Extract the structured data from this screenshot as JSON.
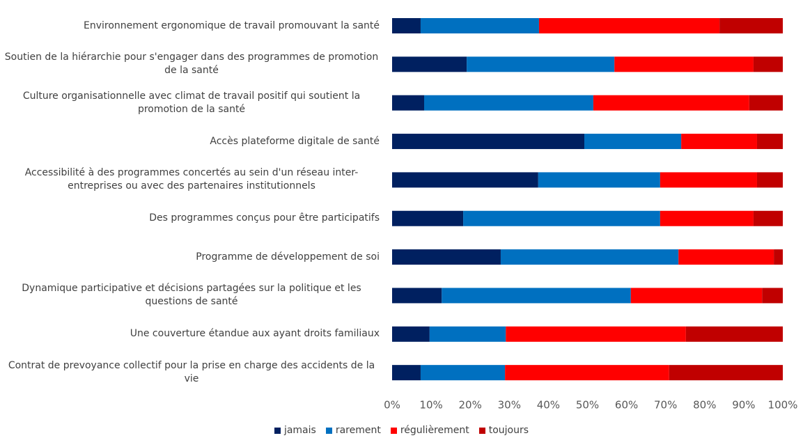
{
  "chart_data": {
    "type": "stacked_barh",
    "categories": [
      "Environnement ergonomique de travail promouvant la santé",
      "Soutien de la hiérarchie pour s'engager dans des programmes de promotion de la santé",
      "Culture organisationnelle avec climat de travail positif qui soutient la promotion de la santé",
      "Accès plateforme digitale de santé",
      "Accessibilité à des programmes concertés au sein d'un réseau inter-entreprises ou avec des partenaires institutionnels",
      "Des programmes conçus pour être participatifs",
      "Programme de développement de soi",
      "Dynamique participative et décisions partagées sur la politique et les questions de santé",
      "Une couverture étandue aux ayant droits familiaux",
      "Contrat de prevoyance collectif pour la prise en charge des accidents de la vie"
    ],
    "series": [
      {
        "name": "jamais",
        "color": "#002060",
        "values": [
          7.3,
          19.1,
          8.2,
          49.2,
          37.4,
          18.2,
          27.8,
          12.7,
          9.6,
          7.3
        ]
      },
      {
        "name": "rarement",
        "color": "#0070c0",
        "values": [
          30.3,
          37.8,
          43.3,
          24.8,
          31.2,
          50.4,
          45.5,
          48.4,
          19.5,
          21.6
        ]
      },
      {
        "name": "régulièrement",
        "color": "#ff0000",
        "values": [
          46.2,
          35.6,
          39.9,
          19.4,
          24.8,
          23.9,
          24.4,
          33.6,
          46.1,
          42.0
        ]
      },
      {
        "name": "toujours",
        "color": "#c00000",
        "values": [
          16.2,
          7.5,
          8.6,
          6.6,
          6.6,
          7.5,
          2.3,
          5.3,
          24.8,
          29.1
        ]
      }
    ],
    "xlim": [
      0,
      100
    ],
    "xticks": [
      {
        "value": 0,
        "label": "0%"
      },
      {
        "value": 10,
        "label": "10%"
      },
      {
        "value": 20,
        "label": "20%"
      },
      {
        "value": 30,
        "label": "30%"
      },
      {
        "value": 40,
        "label": "40%"
      },
      {
        "value": 50,
        "label": "50%"
      },
      {
        "value": 60,
        "label": "60%"
      },
      {
        "value": 70,
        "label": "70%"
      },
      {
        "value": 80,
        "label": "80%"
      },
      {
        "value": 90,
        "label": "90%"
      },
      {
        "value": 100,
        "label": "100%"
      }
    ],
    "legend": "bottom"
  }
}
